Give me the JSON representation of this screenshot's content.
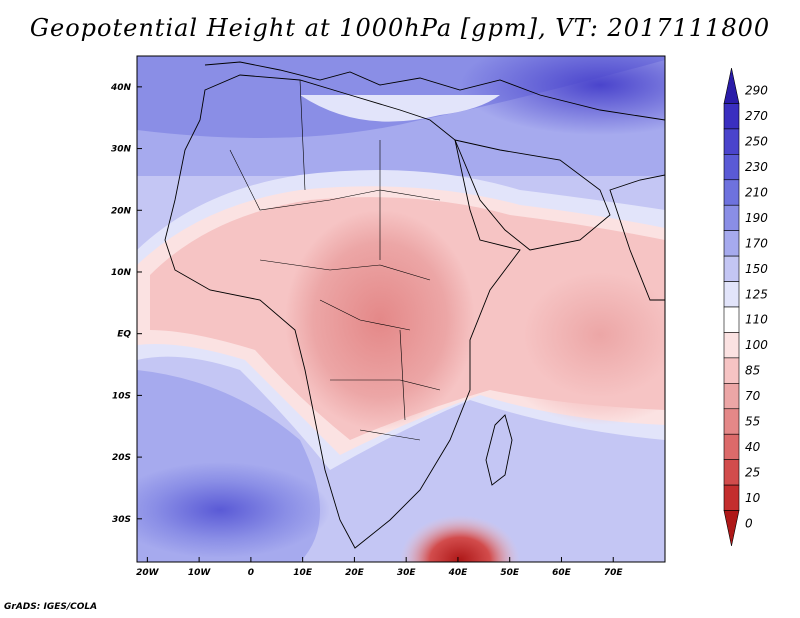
{
  "title": "Geopotential Height at 1000hPa [gpm], VT: 2017111800",
  "credit": "GrADS: IGES/COLA",
  "map": {
    "lon_range": [
      -22,
      80
    ],
    "lat_range": [
      -37,
      45
    ],
    "lon_ticks": [
      {
        "value": -20,
        "label": "20W"
      },
      {
        "value": -10,
        "label": "10W"
      },
      {
        "value": 0,
        "label": "0"
      },
      {
        "value": 10,
        "label": "10E"
      },
      {
        "value": 20,
        "label": "20E"
      },
      {
        "value": 30,
        "label": "30E"
      },
      {
        "value": 40,
        "label": "40E"
      },
      {
        "value": 50,
        "label": "50E"
      },
      {
        "value": 60,
        "label": "60E"
      },
      {
        "value": 70,
        "label": "70E"
      }
    ],
    "lat_ticks": [
      {
        "value": 40,
        "label": "40N"
      },
      {
        "value": 30,
        "label": "30N"
      },
      {
        "value": 20,
        "label": "20N"
      },
      {
        "value": 10,
        "label": "10N"
      },
      {
        "value": 0,
        "label": "EQ"
      },
      {
        "value": -10,
        "label": "10S"
      },
      {
        "value": -20,
        "label": "20S"
      },
      {
        "value": -30,
        "label": "30S"
      }
    ]
  },
  "colorbar": {
    "labels": [
      "290",
      "270",
      "250",
      "230",
      "210",
      "190",
      "170",
      "150",
      "125",
      "110",
      "100",
      "85",
      "70",
      "55",
      "40",
      "25",
      "10",
      "0"
    ],
    "colors": [
      "#2a1ca8",
      "#3a2fc0",
      "#4a44cc",
      "#5a5ad6",
      "#6e72de",
      "#8a8ee6",
      "#a6aaee",
      "#c4c6f4",
      "#e2e4fa",
      "#ffffff",
      "#fbe2e2",
      "#f6c4c4",
      "#eca6a6",
      "#e48888",
      "#dc6a6a",
      "#d24c4c",
      "#c42e2e",
      "#ae1818"
    ]
  }
}
